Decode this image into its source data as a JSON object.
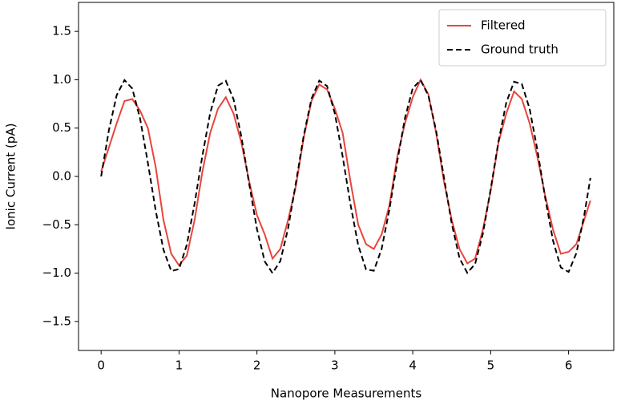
{
  "chart_data": {
    "type": "line",
    "xlabel": "Nanopore Measurements",
    "ylabel": "Ionic Current (pA)",
    "x": [
      0,
      0.1,
      0.2,
      0.3,
      0.4,
      0.5,
      0.6,
      0.7,
      0.8,
      0.9,
      1.0,
      1.1,
      1.2,
      1.3,
      1.4,
      1.5,
      1.6,
      1.7,
      1.8,
      1.9,
      2.0,
      2.1,
      2.2,
      2.3,
      2.4,
      2.5,
      2.6,
      2.7,
      2.8,
      2.9,
      3.0,
      3.1,
      3.2,
      3.3,
      3.4,
      3.5,
      3.6,
      3.7,
      3.8,
      3.9,
      4.0,
      4.1,
      4.2,
      4.3,
      4.4,
      4.5,
      4.6,
      4.7,
      4.8,
      4.9,
      5.0,
      5.1,
      5.2,
      5.3,
      5.4,
      5.5,
      5.6,
      5.7,
      5.8,
      5.9,
      6.0,
      6.1,
      6.2,
      6.28
    ],
    "series": [
      {
        "name": "Filtered",
        "color": "#e8453c",
        "dash": false,
        "values": [
          0.05,
          0.3,
          0.55,
          0.78,
          0.8,
          0.68,
          0.5,
          0.1,
          -0.45,
          -0.8,
          -0.92,
          -0.82,
          -0.45,
          0.05,
          0.45,
          0.7,
          0.82,
          0.65,
          0.35,
          -0.05,
          -0.4,
          -0.6,
          -0.85,
          -0.75,
          -0.45,
          -0.1,
          0.4,
          0.78,
          0.95,
          0.9,
          0.7,
          0.45,
          -0.05,
          -0.5,
          -0.7,
          -0.75,
          -0.6,
          -0.3,
          0.2,
          0.55,
          0.82,
          1.0,
          0.85,
          0.45,
          -0.05,
          -0.45,
          -0.75,
          -0.9,
          -0.85,
          -0.55,
          -0.15,
          0.35,
          0.65,
          0.88,
          0.8,
          0.55,
          0.2,
          -0.2,
          -0.55,
          -0.8,
          -0.78,
          -0.7,
          -0.45,
          -0.25
        ]
      },
      {
        "name": "Ground truth",
        "color": "#000000",
        "dash": true,
        "values": [
          0,
          0.479,
          0.841,
          0.997,
          0.909,
          0.598,
          0.141,
          -0.351,
          -0.757,
          -0.978,
          -0.959,
          -0.706,
          -0.279,
          0.215,
          0.657,
          0.938,
          0.989,
          0.798,
          0.412,
          -0.075,
          -0.544,
          -0.88,
          -1.0,
          -0.875,
          -0.537,
          -0.066,
          0.42,
          0.804,
          0.991,
          0.935,
          0.65,
          0.207,
          -0.288,
          -0.712,
          -0.961,
          -0.976,
          -0.751,
          -0.342,
          0.15,
          0.605,
          0.913,
          0.996,
          0.837,
          0.471,
          -0.009,
          -0.488,
          -0.846,
          -0.998,
          -0.906,
          -0.591,
          -0.132,
          0.36,
          0.763,
          0.98,
          0.956,
          0.699,
          0.271,
          -0.224,
          -0.664,
          -0.941,
          -0.988,
          -0.793,
          -0.404,
          -0.016
        ]
      }
    ],
    "xlim": [
      -0.29,
      6.58
    ],
    "ylim": [
      -1.8,
      1.8
    ],
    "xticks": [
      0,
      1,
      2,
      3,
      4,
      5,
      6
    ],
    "yticks": [
      {
        "value": -1.5,
        "label": "−1.5"
      },
      {
        "value": -1.0,
        "label": "−1.0"
      },
      {
        "value": -0.5,
        "label": "−0.5"
      },
      {
        "value": 0,
        "label": "0.0"
      },
      0.5,
      {
        "value": 1.0,
        "label": "1.0"
      },
      1.5
    ],
    "legend": "upper right"
  }
}
